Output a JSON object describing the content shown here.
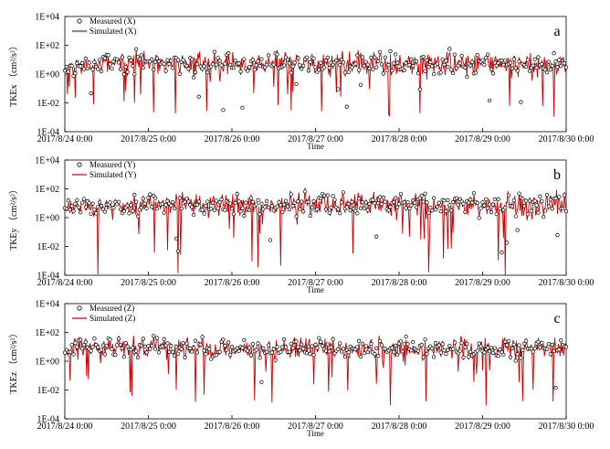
{
  "chart_data": [
    {
      "type": "line",
      "panel_label": "a",
      "ylabel": "TKEx （cm²/s²）",
      "xlabel": "Time",
      "y_scale": "log",
      "ylim": [
        0.0001,
        10000
      ],
      "y_ticks": [
        "1E+04",
        "1E+02",
        "1E+00",
        "1E-02",
        "1E-04"
      ],
      "x_range": [
        "2017/8/24 0:00",
        "2017/8/30 0:00"
      ],
      "x_ticks": [
        "2017/8/24 0:00",
        "2017/8/25 0:00",
        "2017/8/26 0:00",
        "2017/8/27 0:00",
        "2017/8/28 0:00",
        "2017/8/29 0:00",
        "2017/8/30 0:00"
      ],
      "legend_position": "top-left",
      "series": [
        {
          "name": "Measured (X)",
          "style": "open-circle-marker",
          "color": "#000000"
        },
        {
          "name": "Simulated (X)",
          "style": "line",
          "color": "#cc0000"
        }
      ],
      "samples_per_day": 96,
      "seed": 11,
      "typical_log10": 0.7,
      "spread_log10": 0.6,
      "deep_dip_rate": 0.05,
      "deep_dip_min_log10": -3.0
    },
    {
      "type": "line",
      "panel_label": "b",
      "ylabel": "TKEy （cm²/s²）",
      "xlabel": "Time",
      "y_scale": "log",
      "ylim": [
        0.0001,
        10000
      ],
      "y_ticks": [
        "1E+04",
        "1E+02",
        "1E+00",
        "1E-02",
        "1E-04"
      ],
      "x_range": [
        "2017/8/24 0:00",
        "2017/8/30 0:00"
      ],
      "x_ticks": [
        "2017/8/24 0:00",
        "2017/8/25 0:00",
        "2017/8/26 0:00",
        "2017/8/27 0:00",
        "2017/8/28 0:00",
        "2017/8/29 0:00",
        "2017/8/30 0:00"
      ],
      "legend_position": "top-left",
      "series": [
        {
          "name": "Measured (Y)",
          "style": "open-circle-marker",
          "color": "#000000"
        },
        {
          "name": "Simulated (Y)",
          "style": "line",
          "color": "#cc0000"
        }
      ],
      "samples_per_day": 96,
      "seed": 23,
      "typical_log10": 0.9,
      "spread_log10": 0.6,
      "deep_dip_rate": 0.07,
      "deep_dip_min_log10": -4.0
    },
    {
      "type": "line",
      "panel_label": "c",
      "ylabel": "TKEz （cm²/s²）",
      "xlabel": "Time",
      "y_scale": "log",
      "ylim": [
        0.0001,
        10000
      ],
      "y_ticks": [
        "1E+04",
        "1E+02",
        "1E+00",
        "1E-02",
        "1E-04"
      ],
      "x_range": [
        "2017/8/24 0:00",
        "2017/8/30 0:00"
      ],
      "x_ticks": [
        "2017/8/24 0:00",
        "2017/8/25 0:00",
        "2017/8/26 0:00",
        "2017/8/27 0:00",
        "2017/8/28 0:00",
        "2017/8/29 0:00",
        "2017/8/30 0:00"
      ],
      "legend_position": "top-left",
      "series": [
        {
          "name": "Measured (Z)",
          "style": "open-circle-marker",
          "color": "#000000"
        },
        {
          "name": "Simulated (Z)",
          "style": "line",
          "color": "#cc0000"
        }
      ],
      "samples_per_day": 96,
      "seed": 37,
      "typical_log10": 0.9,
      "spread_log10": 0.55,
      "deep_dip_rate": 0.05,
      "deep_dip_min_log10": -3.2
    }
  ]
}
